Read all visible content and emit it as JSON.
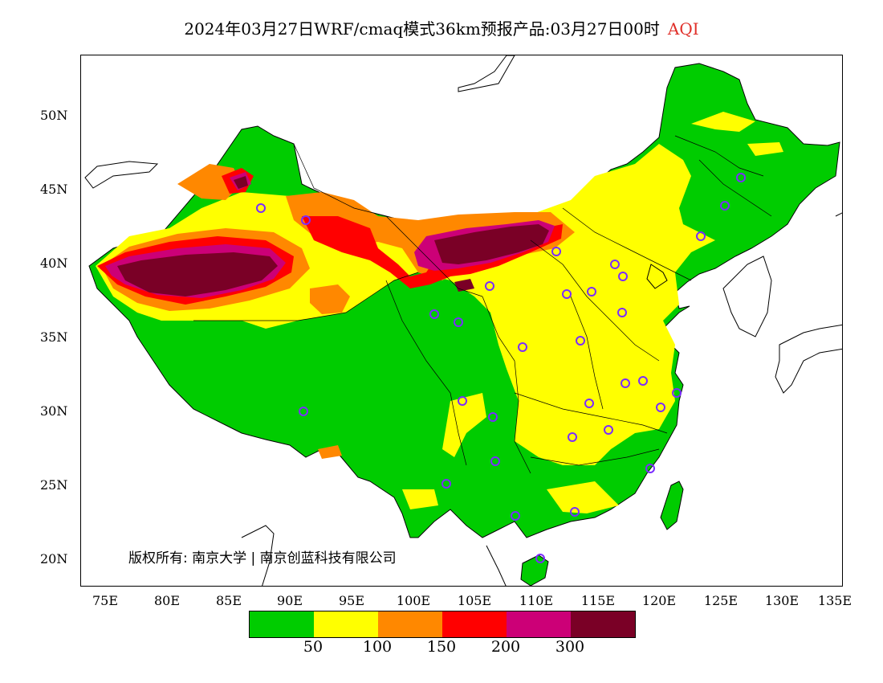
{
  "header": {
    "title": "2024年03月27日WRF/cmaq模式36km预报产品:03月27日00时",
    "variable": "AQI"
  },
  "map": {
    "y_labels": [
      "50N",
      "45N",
      "40N",
      "35N",
      "30N",
      "25N",
      "20N"
    ],
    "x_labels": [
      "75E",
      "80E",
      "85E",
      "90E",
      "95E",
      "100E",
      "105E",
      "110E",
      "115E",
      "120E",
      "125E",
      "130E",
      "135E"
    ],
    "lat_range": [
      18,
      54
    ],
    "lon_range": [
      73,
      135
    ],
    "copyright": "版权所有: 南京大学 | 南京创蓝科技有限公司"
  },
  "legend": {
    "colors": [
      "#00cc00",
      "#ffff00",
      "#ff8800",
      "#ff0000",
      "#cc0077",
      "#7a0026"
    ],
    "labels": [
      "50",
      "100",
      "150",
      "200",
      "300"
    ]
  },
  "stations": {
    "marker_color": "#7b2cff",
    "count": 31
  }
}
